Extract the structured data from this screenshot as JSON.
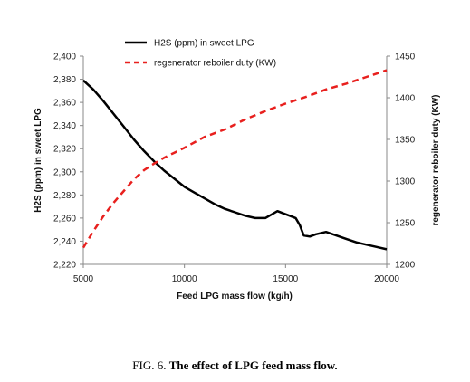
{
  "chart_data": {
    "type": "line",
    "xlabel": "Feed LPG mass flow  (kg/h)",
    "ylabel_left": "H2S (ppm) in sweet LPG",
    "ylabel_right": "regenerator reboiler duty (KW)",
    "xlim": [
      5000,
      20000
    ],
    "ylim_left": [
      2220,
      2400
    ],
    "ylim_right": [
      1200,
      1450
    ],
    "x_ticks": [
      5000,
      10000,
      15000,
      20000
    ],
    "x_tick_labels": [
      "5000",
      "10000",
      "15000",
      "20000"
    ],
    "y_left_ticks": [
      2220,
      2240,
      2260,
      2280,
      2300,
      2320,
      2340,
      2360,
      2380,
      2400
    ],
    "y_left_tick_labels": [
      "2,220",
      "2,240",
      "2,260",
      "2,280",
      "2,300",
      "2,320",
      "2,340",
      "2,360",
      "2,380",
      "2,400"
    ],
    "y_right_ticks": [
      1200,
      1250,
      1300,
      1350,
      1400,
      1450
    ],
    "y_right_tick_labels": [
      "1200",
      "1250",
      "1300",
      "1350",
      "1400",
      "1450"
    ],
    "grid": false,
    "legend_position": "top-center",
    "series": [
      {
        "name": "H2S (ppm) in sweet LPG",
        "axis": "left",
        "color": "#000000",
        "style": "solid",
        "x": [
          5000,
          5500,
          6000,
          6500,
          7000,
          7500,
          8000,
          8500,
          9000,
          9500,
          10000,
          10500,
          11000,
          11500,
          12000,
          12500,
          13000,
          13500,
          14000,
          14300,
          14600,
          14900,
          15200,
          15500,
          15700,
          15900,
          16200,
          16500,
          17000,
          17500,
          18000,
          18500,
          19000,
          19500,
          20000
        ],
        "values": [
          2379,
          2371,
          2361,
          2350,
          2339,
          2328,
          2318,
          2309,
          2301,
          2294,
          2287,
          2282,
          2277,
          2272,
          2268,
          2265,
          2262,
          2260,
          2260,
          2263,
          2266,
          2264,
          2262,
          2260,
          2254,
          2245,
          2244,
          2246,
          2248,
          2245,
          2242,
          2239,
          2237,
          2235,
          2233
        ]
      },
      {
        "name": "regenerator reboiler duty (KW)",
        "axis": "right",
        "color": "#e8201e",
        "style": "dashed",
        "x": [
          5000,
          5500,
          6000,
          6500,
          7000,
          7500,
          8000,
          8500,
          9000,
          9500,
          10000,
          11000,
          12000,
          13000,
          14000,
          15000,
          16000,
          17000,
          18000,
          19000,
          20000
        ],
        "values": [
          1220,
          1240,
          1258,
          1274,
          1288,
          1302,
          1313,
          1321,
          1328,
          1334,
          1340,
          1353,
          1362,
          1374,
          1384,
          1393,
          1401,
          1410,
          1417,
          1425,
          1433
        ]
      }
    ]
  },
  "caption": {
    "prefix": "FIG. 6.",
    "text": "The effect of LPG feed mass flow."
  }
}
